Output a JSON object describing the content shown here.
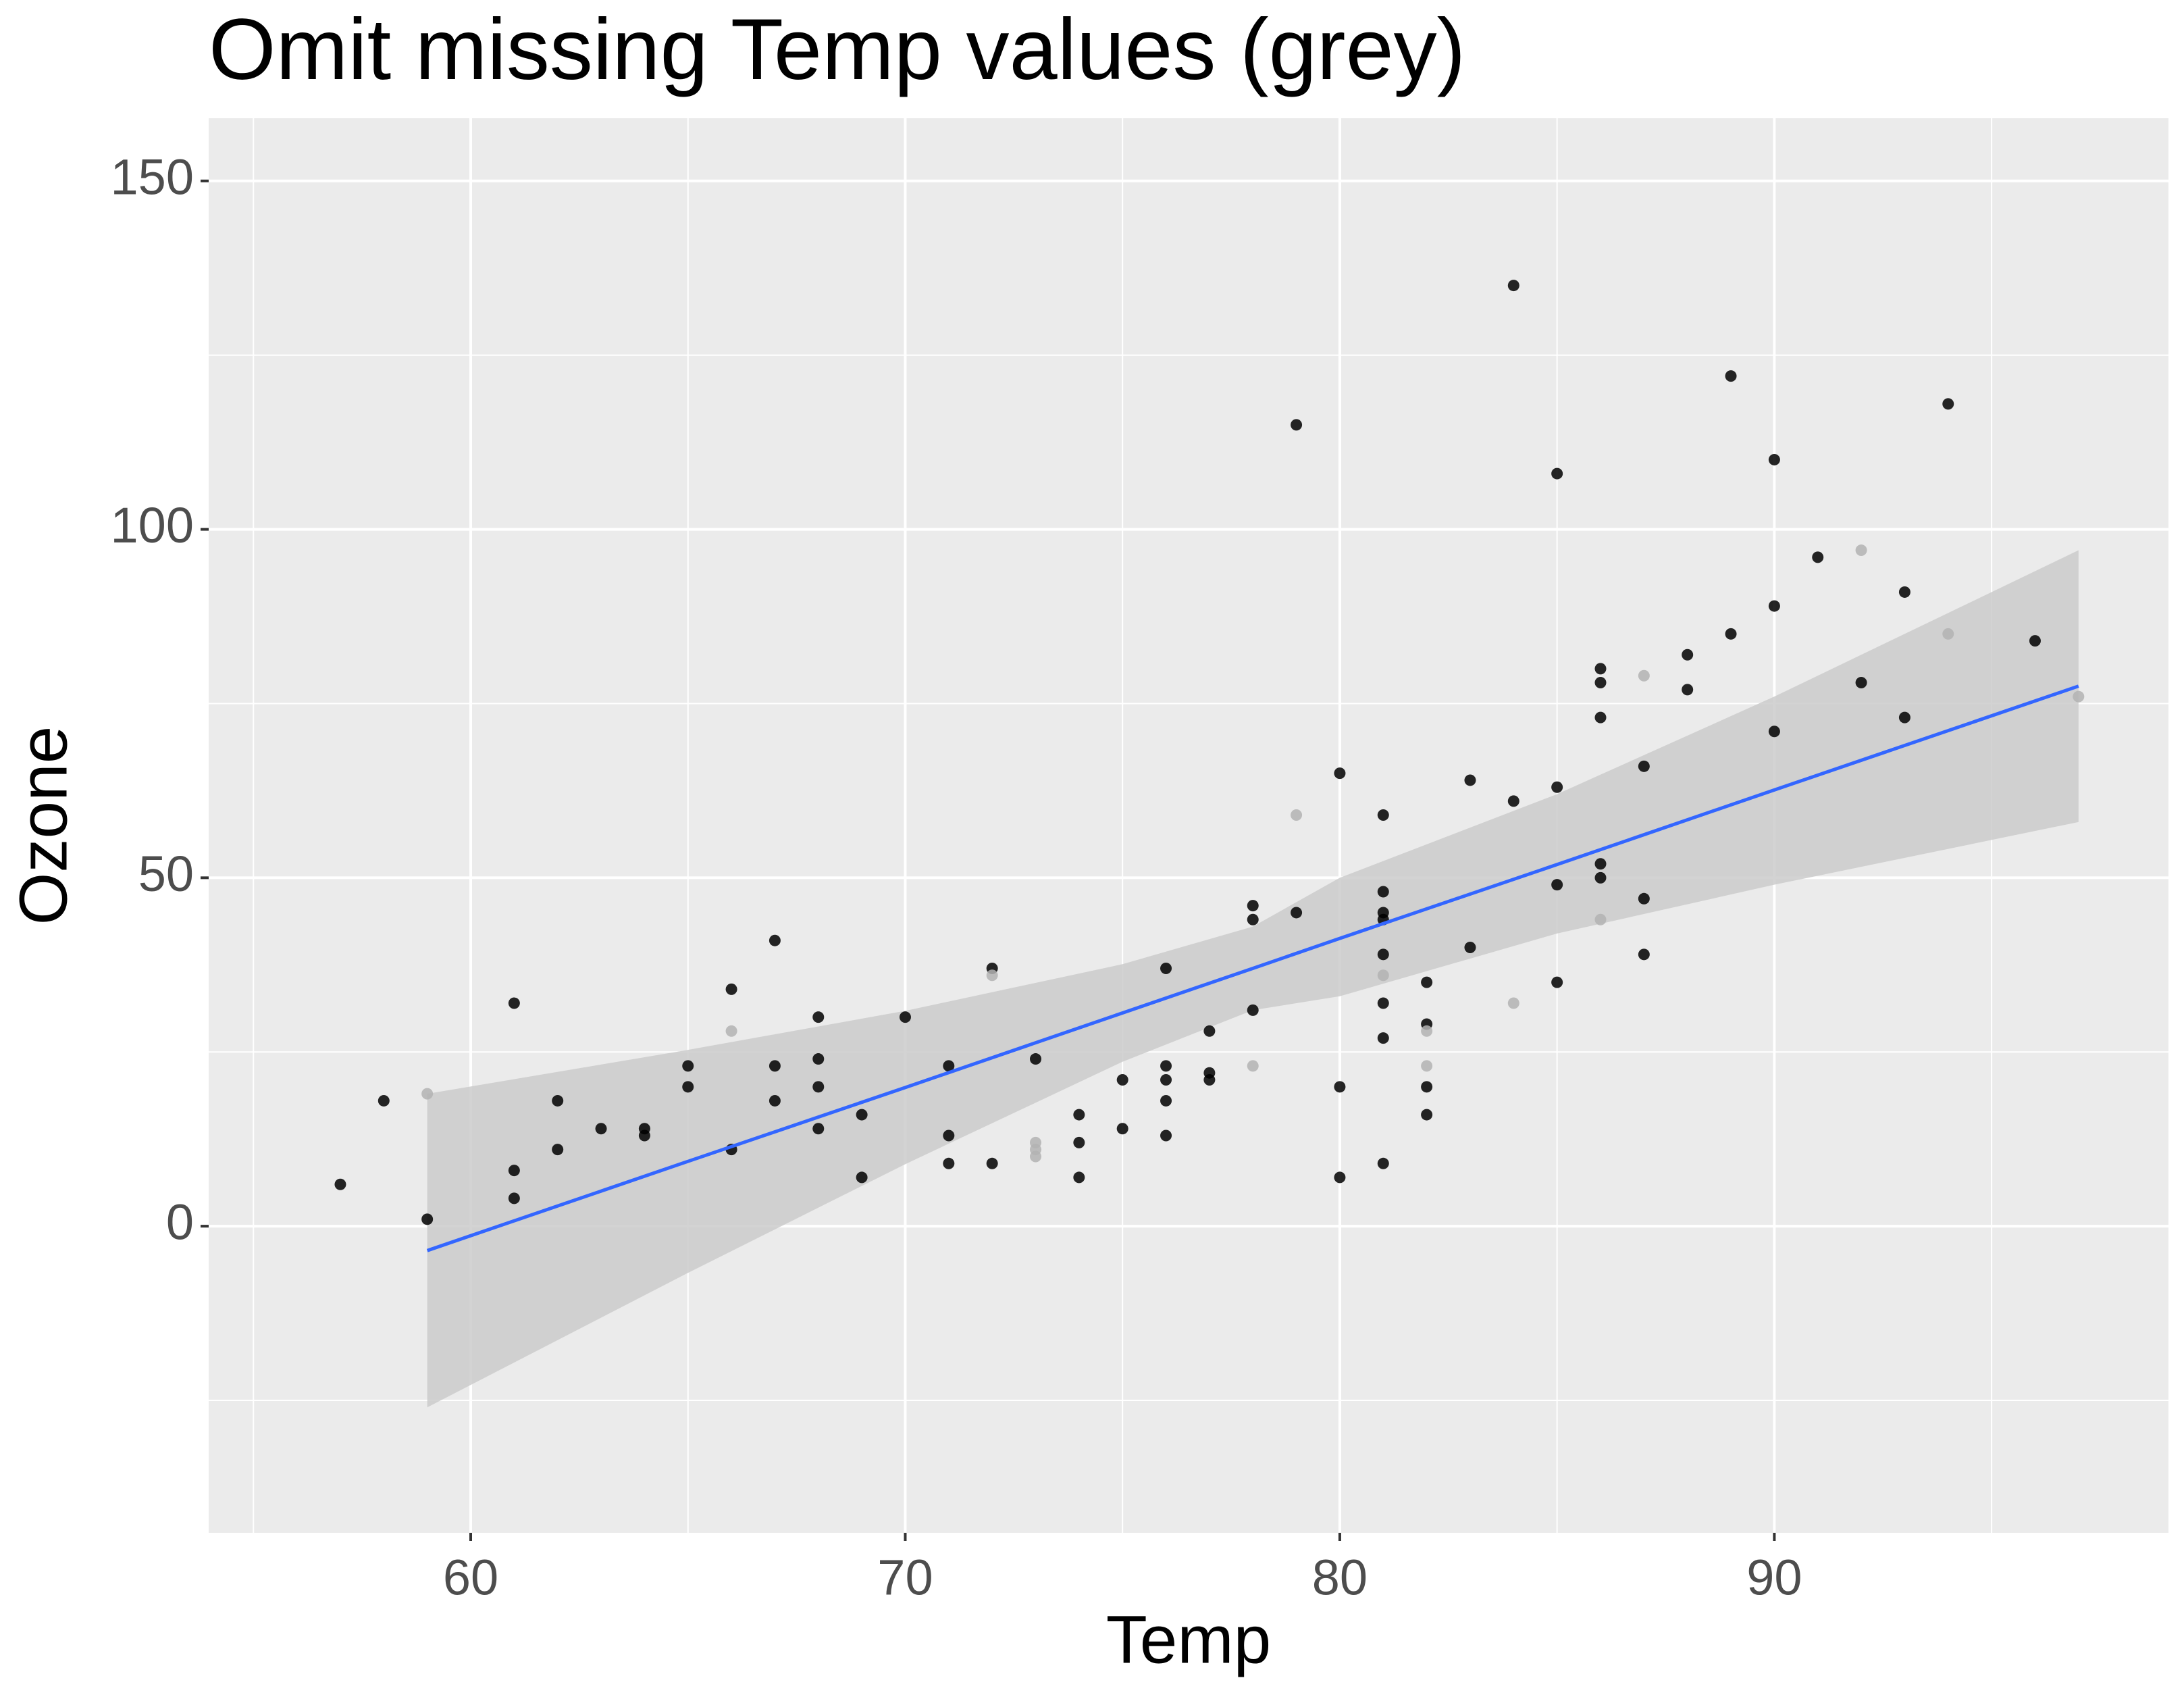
{
  "chart_data": {
    "type": "scatter",
    "title": "Omit missing Temp values (grey)",
    "x_label": "Temp",
    "y_label": "Ozone",
    "xlim": [
      53.97,
      99.07
    ],
    "ylim": [
      -44,
      159
    ],
    "xticks": [
      60,
      70,
      80,
      90
    ],
    "yticks": [
      0,
      50,
      100,
      150
    ],
    "xminor": [
      55,
      65,
      75,
      85,
      95
    ],
    "yminor": [
      -25,
      25,
      75,
      125
    ],
    "grid": true,
    "series": [
      {
        "color": "#000000",
        "x": [
          57,
          58,
          59,
          61,
          61,
          61,
          62,
          62,
          63,
          64,
          64,
          65,
          65,
          66,
          66,
          67,
          67,
          67,
          68,
          68,
          68,
          68,
          69,
          69,
          70,
          71,
          71,
          71,
          72,
          72,
          73,
          74,
          74,
          74,
          75,
          75,
          76,
          76,
          76,
          76,
          76,
          77,
          77,
          77,
          78,
          78,
          78,
          79,
          79,
          80,
          80,
          80,
          81,
          81,
          81,
          81,
          81,
          81,
          81,
          81,
          82,
          82,
          82,
          82,
          83,
          83,
          84,
          84,
          85,
          85,
          85,
          85,
          86,
          86,
          86,
          86,
          86,
          87,
          87,
          87,
          88,
          88,
          89,
          89,
          90,
          90,
          90,
          91,
          92,
          93,
          93,
          94,
          96
        ],
        "values": [
          6,
          18,
          1,
          32,
          8,
          4,
          18,
          11,
          14,
          14,
          13,
          23,
          20,
          34,
          11,
          41,
          23,
          18,
          30,
          24,
          20,
          14,
          16,
          7,
          30,
          23,
          13,
          9,
          37,
          9,
          24,
          16,
          12,
          7,
          21,
          14,
          37,
          23,
          21,
          18,
          13,
          28,
          22,
          21,
          46,
          44,
          31,
          115,
          45,
          65,
          20,
          7,
          59,
          48,
          45,
          44,
          39,
          32,
          27,
          9,
          35,
          29,
          20,
          16,
          64,
          40,
          135,
          61,
          108,
          63,
          49,
          35,
          80,
          78,
          73,
          52,
          50,
          66,
          47,
          39,
          82,
          77,
          122,
          85,
          110,
          89,
          71,
          96,
          78,
          91,
          73,
          118,
          84
        ]
      },
      {
        "color": "#b3b3b3",
        "x": [
          59,
          66,
          72,
          73,
          73,
          73,
          78,
          79,
          81,
          82,
          82,
          84,
          86,
          87,
          92,
          94,
          97
        ],
        "values": [
          19,
          28,
          36,
          12,
          11,
          10,
          23,
          59,
          36,
          28,
          23,
          32,
          44,
          79,
          97,
          85,
          76
        ]
      }
    ],
    "fit": {
      "color": "#3366ff",
      "ribbon_color": "#cbcbcb",
      "x": [
        59,
        65,
        70,
        75,
        78,
        80,
        85,
        90,
        97
      ],
      "values": [
        -3.5,
        9.3,
        19.9,
        30.6,
        37,
        41.3,
        51.9,
        62.6,
        77.5
      ],
      "lower": [
        -26,
        -6.7,
        8.9,
        23.6,
        31,
        33,
        42,
        49,
        58
      ],
      "upper": [
        19,
        25.3,
        30.9,
        37.6,
        43,
        50,
        62,
        76,
        97
      ]
    }
  }
}
